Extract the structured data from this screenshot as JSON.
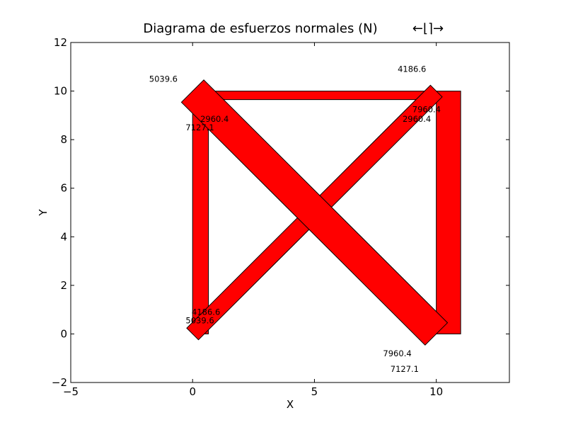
{
  "title": "Diagrama de esfuerzos normales (N)",
  "title_suffix": "←⌊⌉→",
  "xlabel": "X",
  "ylabel": "Y",
  "colors": {
    "fill": "#ff0000",
    "stroke": "#000000",
    "background": "#ffffff"
  },
  "chart_data": {
    "type": "diagram",
    "xlim": [
      -5,
      13
    ],
    "ylim": [
      -2,
      12
    ],
    "xticks": [
      -5,
      0,
      5,
      10
    ],
    "yticks": [
      -2,
      0,
      2,
      4,
      6,
      8,
      10,
      12
    ],
    "grid": false,
    "members": [
      {
        "name": "bottom-left-vertical",
        "from": [
          0,
          0
        ],
        "to": [
          0,
          10
        ],
        "band": [
          -0.65,
          0
        ],
        "values": [
          5039.6,
          5039.6
        ]
      },
      {
        "name": "top-horizontal",
        "from": [
          0,
          10
        ],
        "to": [
          10,
          10
        ],
        "band": [
          0,
          -0.35
        ],
        "values": [
          2960.4,
          2960.4
        ]
      },
      {
        "name": "right-vertical",
        "from": [
          10,
          0
        ],
        "to": [
          10,
          10
        ],
        "band": [
          -1.0,
          0
        ],
        "values": [
          7127.1,
          7127.1
        ]
      },
      {
        "name": "diagonal-up",
        "from": [
          0,
          0
        ],
        "to": [
          10,
          10
        ],
        "band": [
          0.34,
          -0.34
        ],
        "values": [
          4186.6,
          4186.6
        ]
      },
      {
        "name": "diagonal-down",
        "from": [
          0,
          10
        ],
        "to": [
          10,
          0
        ],
        "band": [
          -0.65,
          0.65
        ],
        "values": [
          7960.4,
          7960.4
        ]
      }
    ],
    "annotations": [
      {
        "text": "5039.6",
        "x": -1.2,
        "y": 10.5
      },
      {
        "text": "4186.6",
        "x": 9.0,
        "y": 10.9
      },
      {
        "text": "2960.4",
        "x": 0.9,
        "y": 8.85
      },
      {
        "text": "7127.1",
        "x": 0.3,
        "y": 8.5
      },
      {
        "text": "7960.4",
        "x": 9.6,
        "y": 9.25
      },
      {
        "text": "2960.4",
        "x": 9.2,
        "y": 8.85
      },
      {
        "text": "4186.6",
        "x": 0.55,
        "y": 0.9
      },
      {
        "text": "5039.6",
        "x": 0.3,
        "y": 0.55
      },
      {
        "text": "7960.4",
        "x": 8.4,
        "y": -0.8
      },
      {
        "text": "7127.1",
        "x": 8.7,
        "y": -1.45
      }
    ]
  }
}
